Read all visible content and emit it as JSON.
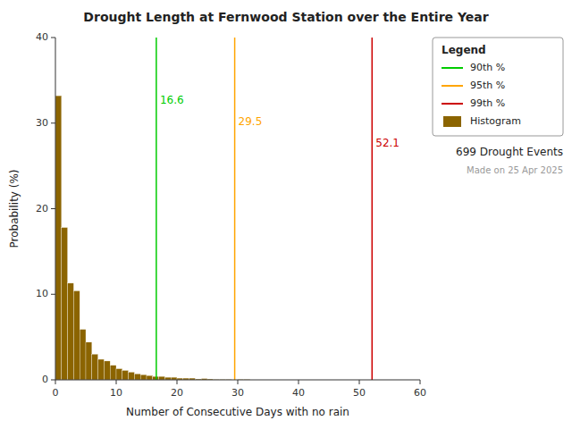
{
  "chart_data": {
    "type": "histogram",
    "title": "Drought Length at Fernwood Station over the Entire Year",
    "x_label": "Number of Consecutive Days with no rain",
    "y_label": "Probability (%)",
    "bins": [
      0,
      1,
      2,
      3,
      4,
      5,
      6,
      7,
      8,
      9,
      10,
      11,
      12,
      13,
      14,
      15,
      16,
      17,
      18,
      19,
      20,
      21,
      22,
      23,
      24,
      25,
      26,
      27,
      28,
      29,
      30,
      31,
      32,
      33,
      34,
      35,
      36,
      37,
      38,
      39,
      40,
      41,
      42,
      43,
      44,
      45,
      46,
      47,
      48,
      49,
      50,
      51,
      52,
      53,
      54,
      55,
      56,
      57,
      58,
      59,
      60
    ],
    "series": [
      {
        "name": "Histogram",
        "color": "#8B6400",
        "values": [
          33.2,
          17.8,
          11.3,
          10.4,
          5.9,
          4.4,
          3.0,
          2.4,
          2.2,
          1.7,
          1.3,
          1.1,
          0.9,
          0.7,
          0.6,
          0.5,
          0.4,
          0.4,
          0.3,
          0.3,
          0.2,
          0.2,
          0.2,
          0.1,
          0.15,
          0.1,
          0.05,
          0.05,
          0.05,
          0.0,
          0.05,
          0.05,
          0.0,
          0.0,
          0.0,
          0.0,
          0.0,
          0.0,
          0.0,
          0.0,
          0.0,
          0.0,
          0.0,
          0.0,
          0.0,
          0.0,
          0.0,
          0.0,
          0.0,
          0.0,
          0.0,
          0.0,
          0.0,
          0.0,
          0.0,
          0.0,
          0.0,
          0.0,
          0.0,
          0.0
        ]
      }
    ],
    "percentile_lines": [
      {
        "name": "90th %",
        "value": 16.6,
        "color": "#00cc00"
      },
      {
        "name": "95th %",
        "value": 29.5,
        "color": "#ffa500"
      },
      {
        "name": "99th %",
        "value": 52.1,
        "color": "#cc0000"
      }
    ],
    "legend_title": "Legend",
    "annotations": [
      "699 Drought Events",
      "Made on 25 Apr 2025"
    ],
    "legend": "upper-right",
    "grid": false,
    "xlim": [
      0,
      60
    ],
    "ylim": [
      0,
      40
    ],
    "xticks": [
      0,
      10,
      20,
      30,
      40,
      50,
      60
    ],
    "yticks": [
      0,
      10,
      20,
      30,
      40
    ]
  }
}
